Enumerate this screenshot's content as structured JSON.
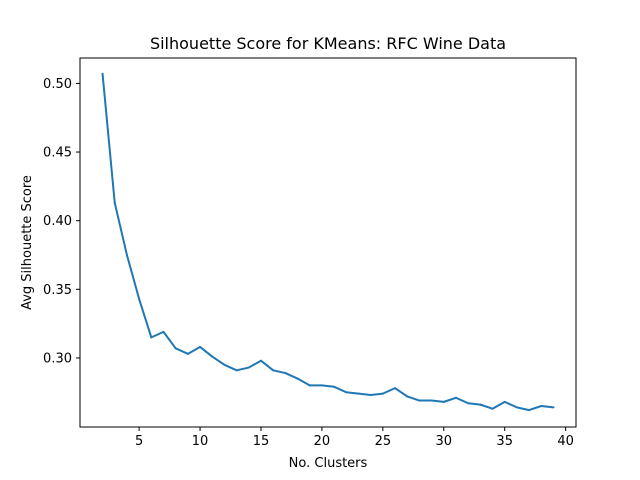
{
  "chart_data": {
    "type": "line",
    "title": "Silhouette Score for KMeans: RFC Wine Data",
    "xlabel": "No. Clusters",
    "ylabel": "Avg Silhouette Score",
    "xlim": [
      0.15,
      40.85
    ],
    "ylim": [
      0.2497,
      0.5185
    ],
    "xticks": [
      5,
      10,
      15,
      20,
      25,
      30,
      35,
      40
    ],
    "yticks": [
      0.3,
      0.35,
      0.4,
      0.45,
      0.5
    ],
    "xtick_labels": [
      "5",
      "10",
      "15",
      "20",
      "25",
      "30",
      "35",
      "40"
    ],
    "ytick_labels": [
      "0.30",
      "0.35",
      "0.40",
      "0.45",
      "0.50"
    ],
    "grid": false,
    "legend": "none",
    "series": [
      {
        "color": "#1f77b4",
        "x": [
          2,
          3,
          4,
          5,
          6,
          7,
          8,
          9,
          10,
          11,
          12,
          13,
          14,
          15,
          16,
          17,
          18,
          19,
          20,
          21,
          22,
          23,
          24,
          25,
          26,
          27,
          28,
          29,
          30,
          31,
          32,
          33,
          34,
          35,
          36,
          37,
          38,
          39
        ],
        "y": [
          0.507,
          0.413,
          0.375,
          0.343,
          0.315,
          0.319,
          0.307,
          0.303,
          0.308,
          0.301,
          0.295,
          0.291,
          0.293,
          0.298,
          0.291,
          0.289,
          0.285,
          0.28,
          0.28,
          0.279,
          0.275,
          0.274,
          0.273,
          0.274,
          0.278,
          0.272,
          0.269,
          0.269,
          0.268,
          0.271,
          0.267,
          0.266,
          0.263,
          0.268,
          0.264,
          0.262,
          0.265,
          0.264
        ]
      }
    ]
  }
}
